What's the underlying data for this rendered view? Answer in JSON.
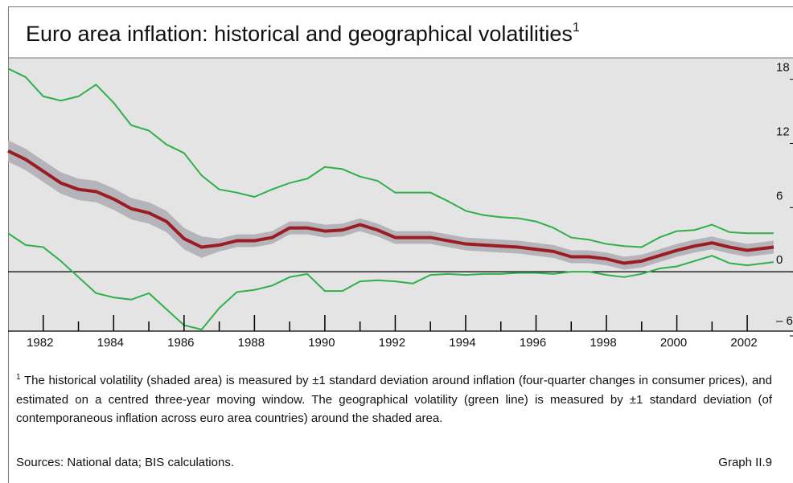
{
  "chart_data": {
    "type": "line",
    "title": "Euro area inflation: historical and geographical volatilities",
    "title_note": "1",
    "x": [
      1981,
      1981.5,
      1982,
      1982.5,
      1983,
      1983.5,
      1984,
      1984.5,
      1985,
      1985.5,
      1986,
      1986.5,
      1987,
      1987.5,
      1988,
      1988.5,
      1989,
      1989.5,
      1990,
      1990.5,
      1991,
      1991.5,
      1992,
      1992.5,
      1993,
      1993.5,
      1994,
      1994.5,
      1995,
      1995.5,
      1996,
      1996.5,
      1997,
      1997.5,
      1998,
      1998.5,
      1999,
      1999.5,
      2000,
      2000.5,
      2001,
      2001.5,
      2002,
      2002.75
    ],
    "band": {
      "color": "#b4b4ba",
      "upper": [
        12.3,
        11.5,
        10.4,
        9.3,
        8.7,
        8.5,
        7.8,
        6.9,
        6.5,
        5.7,
        4.1,
        3.3,
        3.1,
        3.5,
        3.5,
        3.8,
        4.7,
        4.7,
        4.4,
        4.5,
        5.0,
        4.5,
        3.8,
        3.8,
        3.8,
        3.5,
        3.2,
        3.1,
        3.0,
        2.9,
        2.7,
        2.5,
        2.0,
        2.0,
        1.8,
        1.4,
        1.6,
        2.1,
        2.6,
        3.0,
        3.3,
        2.9,
        2.6,
        2.9
      ],
      "lower": [
        10.3,
        9.5,
        8.4,
        7.3,
        6.7,
        6.5,
        5.8,
        4.9,
        4.5,
        3.7,
        2.1,
        1.3,
        1.9,
        2.3,
        2.3,
        2.6,
        3.5,
        3.5,
        3.2,
        3.3,
        3.8,
        3.3,
        2.6,
        2.6,
        2.6,
        2.3,
        2.0,
        1.9,
        1.8,
        1.7,
        1.5,
        1.3,
        0.8,
        0.8,
        0.6,
        0.2,
        0.4,
        0.9,
        1.4,
        1.8,
        2.1,
        1.7,
        1.4,
        1.7
      ]
    },
    "series": [
      {
        "color": "#2fb04a",
        "width": 2,
        "values": [
          19.0,
          18.2,
          16.4,
          16.0,
          16.4,
          17.5,
          15.8,
          13.7,
          13.2,
          11.9,
          11.1,
          9.0,
          7.7,
          7.4,
          7.0,
          7.7,
          8.3,
          8.7,
          9.8,
          9.6,
          8.9,
          8.5,
          7.4,
          7.4,
          7.4,
          6.6,
          5.7,
          5.3,
          5.1,
          5.0,
          4.7,
          4.1,
          3.2,
          3.0,
          2.6,
          2.4,
          2.3,
          3.2,
          3.8,
          3.9,
          4.4,
          3.7,
          3.6,
          3.6
        ]
      },
      {
        "color": "#2fb04a",
        "width": 2,
        "values": [
          3.6,
          2.5,
          2.3,
          1.0,
          -0.5,
          -2.0,
          -2.4,
          -2.6,
          -2.0,
          -3.5,
          -5.0,
          -5.4,
          -3.4,
          -1.9,
          -1.7,
          -1.3,
          -0.5,
          -0.2,
          -1.8,
          -1.8,
          -0.9,
          -0.8,
          -0.9,
          -1.1,
          -0.3,
          -0.2,
          -0.3,
          -0.2,
          -0.2,
          -0.1,
          -0.1,
          -0.2,
          0,
          0,
          -0.3,
          -0.5,
          -0.2,
          0.3,
          0.5,
          1.0,
          1.5,
          0.8,
          0.6,
          0.9
        ]
      },
      {
        "color": "#9b1c22",
        "width": 4,
        "values": [
          11.3,
          10.5,
          9.4,
          8.3,
          7.7,
          7.5,
          6.8,
          5.9,
          5.5,
          4.7,
          3.1,
          2.3,
          2.5,
          2.9,
          2.9,
          3.2,
          4.1,
          4.1,
          3.8,
          3.9,
          4.4,
          3.9,
          3.2,
          3.2,
          3.2,
          2.9,
          2.6,
          2.5,
          2.4,
          2.3,
          2.1,
          1.9,
          1.4,
          1.4,
          1.2,
          0.8,
          1.0,
          1.5,
          2.0,
          2.4,
          2.7,
          2.3,
          2.0,
          2.3
        ]
      }
    ],
    "xlim": [
      1981,
      2003.3
    ],
    "xticks": [
      1982,
      1984,
      1986,
      1988,
      1990,
      1992,
      1994,
      1996,
      1998,
      2000,
      2002
    ],
    "xminorticks": [
      1983,
      1985,
      1987,
      1989,
      1991,
      1993,
      1995,
      1997,
      1999,
      2001
    ],
    "ylim": [
      -6,
      20
    ],
    "yticks": [
      {
        "value": -6,
        "label": "– 6"
      },
      0,
      6,
      12,
      18
    ],
    "footnote_marker": "1",
    "footnote": "The historical volatility (shaded area) is measured by ±1 standard deviation around inflation (four-quarter changes in consumer prices), and estimated on a centred three-year moving window. The geographical volatility (green line) is measured by ±1 standard deviation (of contemporaneous inflation across euro area countries) around the shaded area.",
    "sources": "Sources: National data; BIS calculations.",
    "graph_id": "Graph II.9"
  }
}
